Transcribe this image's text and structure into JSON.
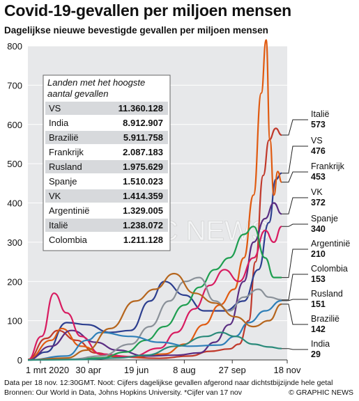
{
  "title": "Covid-19-gevallen per miljoen mensen",
  "subtitle": "Dagelijkse nieuwe bevestigde gevallen per miljoen mensen",
  "footer": {
    "note": "Data per 18 nov. 12:30GMT. Noot: Cijfers dagelijkse gevallen afgerond naar dichtstbijzijnde hele getal",
    "source": "Bronnen: Our World in Data, Johns Hopkins University. *Cijfer van 17 nov",
    "credit": "© GRAPHIC NEWS"
  },
  "watermark": "GRAPHIC NEWS",
  "table": {
    "header_line1": "Landen met het hoogste",
    "header_line2": "aantal gevallen",
    "rows": [
      {
        "country": "VS",
        "value": "11.360.128"
      },
      {
        "country": "India",
        "value": "8.912.907"
      },
      {
        "country": "Brazilië",
        "value": "5.911.758"
      },
      {
        "country": "Frankrijk",
        "value": "2.087.183"
      },
      {
        "country": "Rusland",
        "value": "1.975.629"
      },
      {
        "country": "Spanje",
        "value": "1.510.023"
      },
      {
        "country": "VK",
        "value": "1.414.359"
      },
      {
        "country": "Argentinië",
        "value": "1.329.005"
      },
      {
        "country": "Italië",
        "value": "1.238.072"
      },
      {
        "country": "Colombia",
        "value": "1.211.128"
      }
    ]
  },
  "chart_data": {
    "type": "line",
    "title": "Covid-19-gevallen per miljoen mensen",
    "subtitle": "Dagelijkse nieuwe bevestigde gevallen per miljoen mensen",
    "x_tick_labels": [
      "1 mrt 2020",
      "30 apr",
      "19 jun",
      "8 aug",
      "27 sep",
      "18 nov"
    ],
    "x_range": [
      "2020-03-01",
      "2020-11-18"
    ],
    "y_ticks": [
      0,
      100,
      200,
      300,
      400,
      500,
      600,
      700,
      800
    ],
    "ylim": [
      0,
      800
    ],
    "grid": "horizontal",
    "series": [
      {
        "name": "Italië",
        "value": 573,
        "color": "#c0392b",
        "x": [
          "2020-03-01",
          "2020-03-20",
          "2020-04-01",
          "2020-04-20",
          "2020-05-10",
          "2020-06-01",
          "2020-07-15",
          "2020-08-15",
          "2020-09-05",
          "2020-09-25",
          "2020-10-05",
          "2020-10-15",
          "2020-10-22",
          "2020-10-30",
          "2020-11-05",
          "2020-11-12",
          "2020-11-18"
        ],
        "y": [
          1,
          55,
          75,
          50,
          18,
          8,
          4,
          10,
          22,
          28,
          40,
          100,
          250,
          470,
          560,
          590,
          573
        ]
      },
      {
        "name": "VS",
        "value": 476,
        "color": "#2c3e8f",
        "x": [
          "2020-03-01",
          "2020-03-20",
          "2020-04-10",
          "2020-05-01",
          "2020-05-25",
          "2020-06-15",
          "2020-07-05",
          "2020-07-20",
          "2020-08-10",
          "2020-08-30",
          "2020-09-20",
          "2020-10-10",
          "2020-10-25",
          "2020-11-05",
          "2020-11-12",
          "2020-11-18"
        ],
        "y": [
          0,
          20,
          95,
          90,
          70,
          75,
          150,
          200,
          165,
          125,
          125,
          150,
          230,
          350,
          460,
          476
        ]
      },
      {
        "name": "Frankrijk",
        "value": 453,
        "color": "#e05a10",
        "x": [
          "2020-03-01",
          "2020-03-25",
          "2020-04-05",
          "2020-04-25",
          "2020-05-20",
          "2020-06-20",
          "2020-07-20",
          "2020-08-10",
          "2020-08-30",
          "2020-09-15",
          "2020-09-30",
          "2020-10-10",
          "2020-10-20",
          "2020-10-28",
          "2020-11-02",
          "2020-11-06",
          "2020-11-10",
          "2020-11-14",
          "2020-11-18"
        ],
        "y": [
          1,
          50,
          80,
          35,
          12,
          8,
          15,
          40,
          90,
          140,
          180,
          260,
          420,
          680,
          815,
          560,
          420,
          480,
          453
        ]
      },
      {
        "name": "VK",
        "value": 372,
        "color": "#5a2d82",
        "x": [
          "2020-03-01",
          "2020-03-25",
          "2020-04-15",
          "2020-05-10",
          "2020-06-01",
          "2020-07-01",
          "2020-08-01",
          "2020-08-25",
          "2020-09-10",
          "2020-09-25",
          "2020-10-10",
          "2020-10-20",
          "2020-11-01",
          "2020-11-10",
          "2020-11-18"
        ],
        "y": [
          0,
          35,
          75,
          45,
          25,
          10,
          12,
          18,
          45,
          90,
          200,
          300,
          360,
          400,
          372
        ]
      },
      {
        "name": "Spanje",
        "value": 340,
        "color": "#d81b60",
        "x": [
          "2020-03-01",
          "2020-03-15",
          "2020-03-28",
          "2020-04-10",
          "2020-04-25",
          "2020-05-15",
          "2020-06-15",
          "2020-07-15",
          "2020-08-01",
          "2020-08-20",
          "2020-09-05",
          "2020-09-20",
          "2020-10-05",
          "2020-10-20",
          "2020-11-01",
          "2020-11-10",
          "2020-11-18"
        ],
        "y": [
          0,
          60,
          170,
          120,
          60,
          15,
          8,
          30,
          70,
          130,
          190,
          230,
          200,
          260,
          330,
          300,
          340
        ]
      },
      {
        "name": "Argentinië",
        "value": 210,
        "color": "#1e9e50",
        "x": [
          "2020-03-01",
          "2020-04-15",
          "2020-05-15",
          "2020-06-10",
          "2020-07-01",
          "2020-07-20",
          "2020-08-10",
          "2020-08-25",
          "2020-09-10",
          "2020-09-25",
          "2020-10-10",
          "2020-10-20",
          "2020-11-01",
          "2020-11-10",
          "2020-11-18"
        ],
        "y": [
          0,
          1,
          5,
          20,
          50,
          85,
          140,
          185,
          230,
          260,
          320,
          340,
          260,
          210,
          210
        ]
      },
      {
        "name": "Colombia",
        "value": 153,
        "color": "#8a9199",
        "x": [
          "2020-03-01",
          "2020-04-15",
          "2020-05-15",
          "2020-06-15",
          "2020-07-05",
          "2020-07-25",
          "2020-08-10",
          "2020-08-25",
          "2020-09-10",
          "2020-09-25",
          "2020-10-10",
          "2020-10-25",
          "2020-11-05",
          "2020-11-18"
        ],
        "y": [
          0,
          2,
          10,
          40,
          85,
          150,
          200,
          210,
          150,
          125,
          160,
          180,
          160,
          153
        ]
      },
      {
        "name": "Rusland",
        "value": 151,
        "color": "#2e7fb8",
        "x": [
          "2020-03-01",
          "2020-04-10",
          "2020-05-01",
          "2020-05-15",
          "2020-06-15",
          "2020-07-15",
          "2020-08-15",
          "2020-09-15",
          "2020-10-01",
          "2020-10-15",
          "2020-11-01",
          "2020-11-18"
        ],
        "y": [
          0,
          10,
          50,
          70,
          60,
          45,
          35,
          38,
          60,
          95,
          125,
          151
        ]
      },
      {
        "name": "Brazilië",
        "value": 142,
        "color": "#b5651d",
        "x": [
          "2020-03-01",
          "2020-04-10",
          "2020-05-01",
          "2020-05-25",
          "2020-06-20",
          "2020-07-10",
          "2020-07-30",
          "2020-08-20",
          "2020-09-10",
          "2020-10-01",
          "2020-10-20",
          "2020-11-05",
          "2020-11-18"
        ],
        "y": [
          0,
          5,
          25,
          80,
          150,
          180,
          220,
          170,
          145,
          110,
          85,
          100,
          142
        ]
      },
      {
        "name": "India",
        "value": 29,
        "color": "#2a8a7a",
        "x": [
          "2020-03-01",
          "2020-05-01",
          "2020-06-01",
          "2020-07-01",
          "2020-08-01",
          "2020-09-01",
          "2020-09-16",
          "2020-10-01",
          "2020-10-20",
          "2020-11-05",
          "2020-11-18"
        ],
        "y": [
          0,
          1,
          5,
          12,
          35,
          60,
          70,
          60,
          40,
          33,
          29
        ]
      }
    ]
  }
}
